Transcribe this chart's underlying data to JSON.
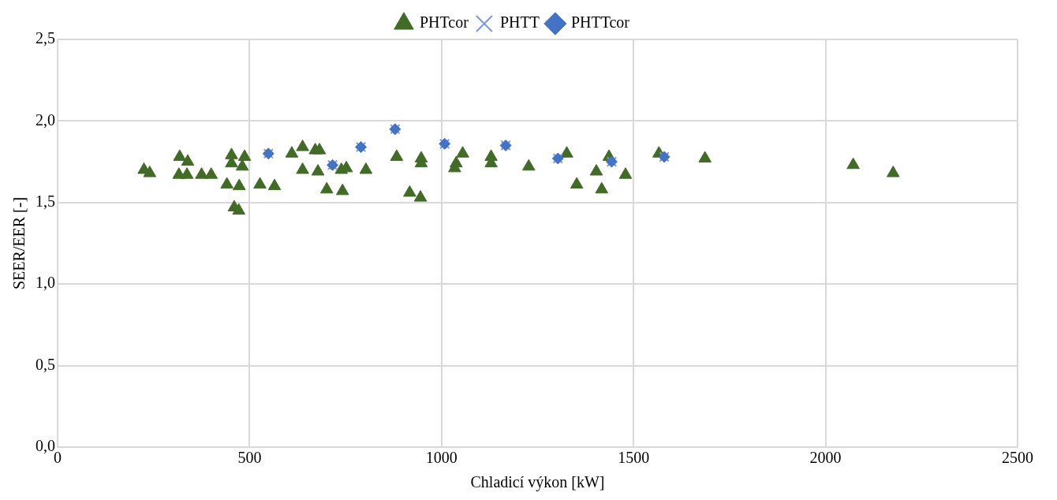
{
  "chart_data": {
    "type": "scatter",
    "xlabel": "Chladicí výkon [kW]",
    "ylabel": "SEER/EER [-]",
    "xlim": [
      0,
      2500
    ],
    "xticks": [
      0,
      500,
      1000,
      1500,
      2000,
      2500
    ],
    "ylim": [
      0,
      2.5
    ],
    "yticks": [
      {
        "value": 0,
        "label": "0,0"
      },
      {
        "value": 0.5,
        "label": "0,5"
      },
      {
        "value": 1,
        "label": "1,0"
      },
      {
        "value": 1.5,
        "label": "1,5"
      },
      {
        "value": 2,
        "label": "2,0"
      },
      {
        "value": 2.5,
        "label": "2,5"
      }
    ],
    "grid": true,
    "legend": "top",
    "series": [
      {
        "name": "PHTcor",
        "color": "#426b28",
        "marker": "triangle",
        "x": [
          225,
          240,
          318,
          339,
          316,
          337,
          375,
          400,
          441,
          473,
          453,
          487,
          453,
          481,
          460,
          472,
          527,
          565,
          610,
          638,
          671,
          682,
          638,
          678,
          701,
          742,
          739,
          752,
          803,
          883,
          947,
          947,
          917,
          945,
          1055,
          1038,
          1034,
          1129,
          1129,
          1227,
          1326,
          1352,
          1403,
          1417,
          1436,
          1479,
          1566,
          1686,
          2072,
          2176
        ],
        "values": [
          1.7,
          1.68,
          1.78,
          1.75,
          1.67,
          1.67,
          1.67,
          1.67,
          1.61,
          1.6,
          1.79,
          1.78,
          1.74,
          1.72,
          1.47,
          1.45,
          1.61,
          1.6,
          1.8,
          1.84,
          1.82,
          1.82,
          1.7,
          1.69,
          1.58,
          1.57,
          1.7,
          1.71,
          1.7,
          1.78,
          1.77,
          1.74,
          1.56,
          1.53,
          1.8,
          1.74,
          1.71,
          1.78,
          1.74,
          1.72,
          1.8,
          1.61,
          1.69,
          1.58,
          1.78,
          1.67,
          1.8,
          1.77,
          1.73,
          1.68
        ]
      },
      {
        "name": "PHTT",
        "color": "#7b98d8",
        "marker": "cross",
        "x": [
          549,
          716,
          790,
          879,
          1008,
          1167,
          1303,
          1443,
          1580
        ],
        "values": [
          1.8,
          1.73,
          1.84,
          1.95,
          1.86,
          1.85,
          1.77,
          1.75,
          1.78
        ]
      },
      {
        "name": "PHTTcor",
        "color": "#4472c4",
        "marker": "diamond",
        "x": [
          549,
          716,
          790,
          879,
          1008,
          1167,
          1303,
          1443,
          1580
        ],
        "values": [
          1.8,
          1.73,
          1.84,
          1.95,
          1.86,
          1.85,
          1.77,
          1.75,
          1.78
        ]
      }
    ]
  }
}
